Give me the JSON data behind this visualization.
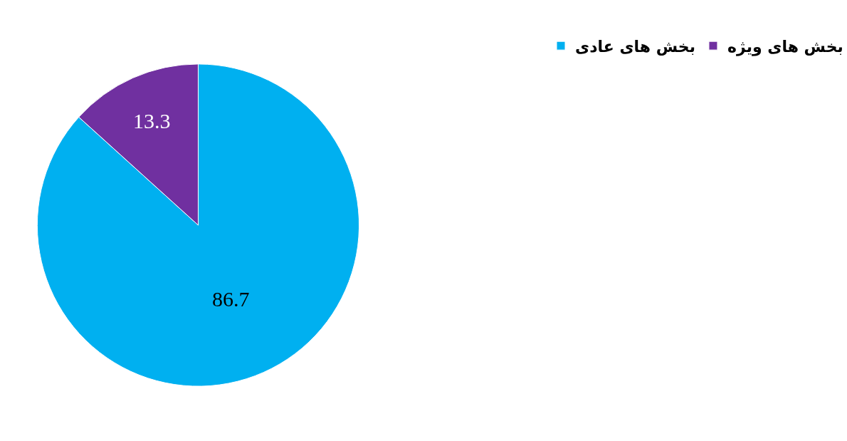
{
  "chart_data": {
    "type": "pie",
    "categories": [
      "بخش های عادی",
      "بخش های ویژه"
    ],
    "values": [
      86.7,
      13.3
    ],
    "colors": [
      "#00b0f0",
      "#7030a0"
    ],
    "data_labels": true,
    "legend": "top right"
  }
}
